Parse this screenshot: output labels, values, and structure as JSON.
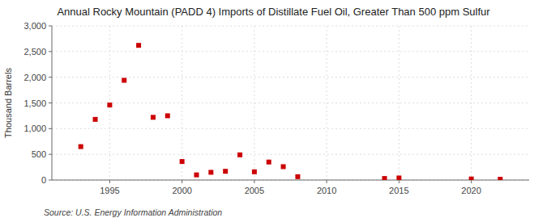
{
  "chart_data": {
    "type": "scatter",
    "title": "Annual Rocky Mountain (PADD 4) Imports of Distillate Fuel Oil, Greater Than 500 ppm Sulfur",
    "y_label": "Thousand Barrels",
    "annotations": [
      "Source: U.S. Energy Information Administration"
    ],
    "x": [
      1993,
      1994,
      1995,
      1996,
      1997,
      1998,
      1999,
      2000,
      2001,
      2002,
      2003,
      2004,
      2005,
      2006,
      2007,
      2008,
      2014,
      2015,
      2020,
      2022
    ],
    "values": [
      650,
      1180,
      1460,
      1940,
      2620,
      1220,
      1250,
      360,
      100,
      150,
      170,
      490,
      160,
      350,
      260,
      65,
      30,
      40,
      20,
      15
    ],
    "color": "#cc0000",
    "marker": "square",
    "xlim": [
      1991,
      2024
    ],
    "ylim": [
      0,
      3000
    ],
    "xticks": [
      1995,
      2000,
      2005,
      2010,
      2015,
      2020
    ],
    "yticks": [
      0,
      500,
      {
        "value": 1000,
        "label": "1,000"
      },
      {
        "value": 1500,
        "label": "1,500"
      },
      {
        "value": 2000,
        "label": "2,000"
      },
      {
        "value": 2500,
        "label": "2,500"
      },
      {
        "value": 3000,
        "label": "3,000"
      }
    ],
    "grid": true
  }
}
